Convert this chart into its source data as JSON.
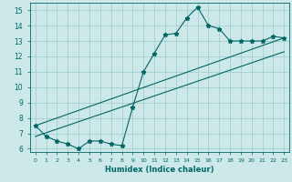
{
  "xlabel": "Humidex (Indice chaleur)",
  "ylabel": "",
  "bg_color": "#cce8e8",
  "grid_color": "#99cccc",
  "line_color": "#006666",
  "xlim": [
    -0.5,
    23.5
  ],
  "ylim": [
    5.8,
    15.5
  ],
  "xtick_labels": [
    "0",
    "1",
    "2",
    "3",
    "4",
    "5",
    "6",
    "7",
    "8",
    "9",
    "10",
    "11",
    "12",
    "13",
    "14",
    "15",
    "16",
    "17",
    "18",
    "19",
    "20",
    "21",
    "22",
    "23"
  ],
  "xtick_vals": [
    0,
    1,
    2,
    3,
    4,
    5,
    6,
    7,
    8,
    9,
    10,
    11,
    12,
    13,
    14,
    15,
    16,
    17,
    18,
    19,
    20,
    21,
    22,
    23
  ],
  "ytick_vals": [
    6,
    7,
    8,
    9,
    10,
    11,
    12,
    13,
    14,
    15
  ],
  "curve_x": [
    0,
    1,
    2,
    3,
    4,
    5,
    6,
    7,
    8,
    9,
    10,
    11,
    12,
    13,
    14,
    15,
    16,
    17,
    18,
    19,
    20,
    21,
    22,
    23
  ],
  "curve_y": [
    7.5,
    6.8,
    6.5,
    6.3,
    6.0,
    6.5,
    6.5,
    6.3,
    6.2,
    8.7,
    11.0,
    12.2,
    13.4,
    13.5,
    14.5,
    15.2,
    14.0,
    13.8,
    13.0,
    13.0,
    13.0,
    13.0,
    13.3,
    13.2
  ],
  "line1_x": [
    0,
    23
  ],
  "line1_y": [
    6.8,
    12.3
  ],
  "line2_x": [
    0,
    23
  ],
  "line2_y": [
    7.5,
    13.2
  ]
}
